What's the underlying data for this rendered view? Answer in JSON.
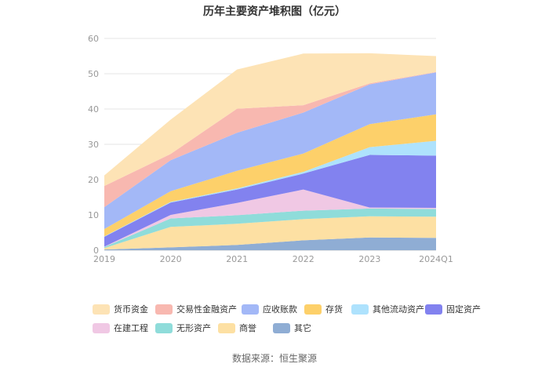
{
  "chart_data": {
    "type": "area",
    "stacked": true,
    "title": "历年主要资产堆积图（亿元）",
    "categories": [
      "2019",
      "2020",
      "2021",
      "2022",
      "2023",
      "2024Q1"
    ],
    "ylim": [
      0,
      60
    ],
    "yticks": [
      0,
      10,
      20,
      30,
      40,
      50,
      60
    ],
    "grid": true,
    "legend_position": "bottom",
    "series": [
      {
        "name": "其它",
        "color": "#8fadd4",
        "values": [
          0.2,
          0.8,
          1.5,
          2.8,
          3.6,
          3.5
        ]
      },
      {
        "name": "商誉",
        "color": "#fde0a3",
        "values": [
          0.4,
          5.8,
          6.0,
          6.0,
          6.0,
          6.0
        ]
      },
      {
        "name": "无形资产",
        "color": "#8fdcda",
        "values": [
          0.3,
          2.4,
          2.4,
          2.4,
          2.2,
          2.2
        ]
      },
      {
        "name": "在建工程",
        "color": "#f0c8e4",
        "values": [
          0.1,
          1.0,
          3.5,
          6.0,
          0.3,
          0.3
        ]
      },
      {
        "name": "固定资产",
        "color": "#8282ef",
        "values": [
          2.8,
          3.5,
          3.8,
          4.5,
          14.9,
          14.8
        ]
      },
      {
        "name": "其他流动资产",
        "color": "#aee2fd",
        "values": [
          0.1,
          0.2,
          0.3,
          0.5,
          2.2,
          4.2
        ]
      },
      {
        "name": "存货",
        "color": "#fdd06a",
        "values": [
          2.1,
          3.0,
          5.0,
          5.2,
          6.5,
          7.5
        ]
      },
      {
        "name": "应收账款",
        "color": "#a3b8f7",
        "values": [
          6.2,
          8.8,
          10.8,
          11.6,
          11.3,
          11.9
        ]
      },
      {
        "name": "交易性金融资产",
        "color": "#f8b8b0",
        "values": [
          6.0,
          1.8,
          6.8,
          2.1,
          0.3,
          0.1
        ]
      },
      {
        "name": "货币资金",
        "color": "#fde3b5",
        "values": [
          3.0,
          9.7,
          11.1,
          14.6,
          8.5,
          4.5
        ]
      }
    ]
  },
  "legend_order": [
    "货币资金",
    "交易性金融资产",
    "应收账款",
    "存货",
    "其他流动资产",
    "固定资产",
    "在建工程",
    "无形资产",
    "商誉",
    "其它"
  ],
  "source": "数据来源：恒生聚源"
}
